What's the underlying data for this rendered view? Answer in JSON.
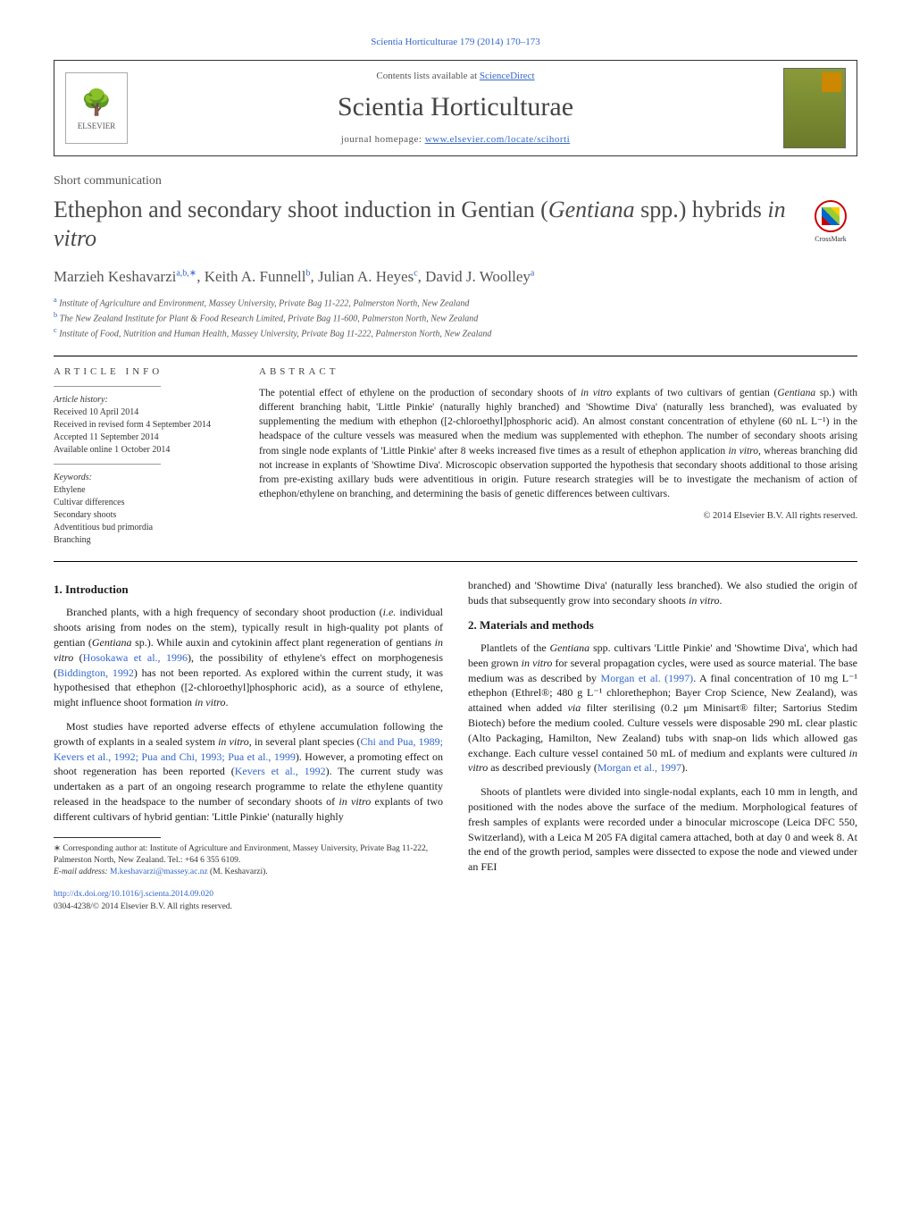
{
  "journal_ref": "Scientia Horticulturae 179 (2014) 170–173",
  "header": {
    "contents_text": "Contents lists available at ",
    "contents_link": "ScienceDirect",
    "journal_title": "Scientia Horticulturae",
    "homepage_label": "journal homepage: ",
    "homepage_url": "www.elsevier.com/locate/scihorti",
    "publisher_logo_text": "ELSEVIER"
  },
  "article_type": "Short communication",
  "title_pre": "Ethephon and secondary shoot induction in Gentian (",
  "title_em1": "Gentiana",
  "title_mid": " spp.) hybrids ",
  "title_em2": "in vitro",
  "crossmark_label": "CrossMark",
  "authors_html": "Marzieh Keshavarzi",
  "author1_sup": "a,b,∗",
  "author2": ", Keith A. Funnell",
  "author2_sup": "b",
  "author3": ", Julian A. Heyes",
  "author3_sup": "c",
  "author4": ", David J. Woolley",
  "author4_sup": "a",
  "affiliations": {
    "a_sup": "a",
    "a": " Institute of Agriculture and Environment, Massey University, Private Bag 11-222, Palmerston North, New Zealand",
    "b_sup": "b",
    "b": " The New Zealand Institute for Plant & Food Research Limited, Private Bag 11-600, Palmerston North, New Zealand",
    "c_sup": "c",
    "c": " Institute of Food, Nutrition and Human Health, Massey University, Private Bag 11-222, Palmerston North, New Zealand"
  },
  "article_info": {
    "heading": "article info",
    "history_label": "Article history:",
    "received": "Received 10 April 2014",
    "revised": "Received in revised form 4 September 2014",
    "accepted": "Accepted 11 September 2014",
    "online": "Available online 1 October 2014",
    "keywords_label": "Keywords:",
    "kw1": "Ethylene",
    "kw2": "Cultivar differences",
    "kw3": "Secondary shoots",
    "kw4": "Adventitious bud primordia",
    "kw5": "Branching"
  },
  "abstract": {
    "heading": "abstract",
    "text_1": "The potential effect of ethylene on the production of secondary shoots of ",
    "em_1": "in vitro",
    "text_2": " explants of two cultivars of gentian (",
    "em_2": "Gentiana",
    "text_3": " sp.) with different branching habit, 'Little Pinkie' (naturally highly branched) and 'Showtime Diva' (naturally less branched), was evaluated by supplementing the medium with ethephon ([2-chloroethyl]phosphoric acid). An almost constant concentration of ethylene (60 nL L⁻¹) in the headspace of the culture vessels was measured when the medium was supplemented with ethephon. The number of secondary shoots arising from single node explants of 'Little Pinkie' after 8 weeks increased five times as a result of ethephon application ",
    "em_3": "in vitro",
    "text_4": ", whereas branching did not increase in explants of 'Showtime Diva'. Microscopic observation supported the hypothesis that secondary shoots additional to those arising from pre-existing axillary buds were adventitious in origin. Future research strategies will be to investigate the mechanism of action of ethephon/ethylene on branching, and determining the basis of genetic differences between cultivars.",
    "copyright": "© 2014 Elsevier B.V. All rights reserved."
  },
  "body": {
    "sec1_heading": "1. Introduction",
    "p1a": "Branched plants, with a high frequency of secondary shoot production (",
    "p1_em1": "i.e.",
    "p1b": " individual shoots arising from nodes on the stem), typically result in high-quality pot plants of gentian (",
    "p1_em2": "Gentiana",
    "p1c": " sp.). While auxin and cytokinin affect plant regeneration of gentians ",
    "p1_em3": "in vitro",
    "p1d": " (",
    "p1_ref1": "Hosokawa et al., 1996",
    "p1e": "), the possibility of ethylene's effect on morphogenesis (",
    "p1_ref2": "Biddington, 1992",
    "p1f": ") has not been reported. As explored within the current study, it was hypothesised that ethephon ([2-chloroethyl]phosphoric acid), as a source of ethylene, might influence shoot formation ",
    "p1_em4": "in vitro",
    "p1g": ".",
    "p2a": "Most studies have reported adverse effects of ethylene accumulation following the growth of explants in a sealed system ",
    "p2_em1": "in vitro",
    "p2b": ", in several plant species (",
    "p2_ref1": "Chi and Pua, 1989; Kevers et al., 1992; Pua and Chi, 1993; Pua et al., 1999",
    "p2c": "). However, a promoting effect on shoot regeneration has been reported (",
    "p2_ref2": "Kevers et al., 1992",
    "p2d": "). The current study was undertaken as a part of an ongoing research programme to relate the ethylene quantity released in the headspace to the number of secondary shoots of ",
    "p2_em2": "in vitro",
    "p2e": " explants of two different cultivars of hybrid gentian: 'Little Pinkie' (naturally highly",
    "p2f_col2": "branched) and 'Showtime Diva' (naturally less branched). We also studied the origin of buds that subsequently grow into secondary shoots ",
    "p2_em3": "in vitro",
    "p2g": ".",
    "sec2_heading": "2. Materials and methods",
    "p3a": "Plantlets of the ",
    "p3_em1": "Gentiana",
    "p3b": " spp. cultivars 'Little Pinkie' and 'Showtime Diva', which had been grown ",
    "p3_em2": "in vitro",
    "p3c": " for several propagation cycles, were used as source material. The base medium was as described by ",
    "p3_ref1": "Morgan et al. (1997)",
    "p3d": ". A final concentration of 10 mg L⁻¹ ethephon (Ethrel®; 480 g L⁻¹ chlorethephon; Bayer Crop Science, New Zealand), was attained when added ",
    "p3_em3": "via",
    "p3e": " filter sterilising (0.2 μm Minisart® filter; Sartorius Stedim Biotech) before the medium cooled. Culture vessels were disposable 290 mL clear plastic (Alto Packaging, Hamilton, New Zealand) tubs with snap-on lids which allowed gas exchange. Each culture vessel contained 50 mL of medium and explants were cultured ",
    "p3_em4": "in vitro",
    "p3f": " as described previously (",
    "p3_ref2": "Morgan et al., 1997",
    "p3g": ").",
    "p4": "Shoots of plantlets were divided into single-nodal explants, each 10 mm in length, and positioned with the nodes above the surface of the medium. Morphological features of fresh samples of explants were recorded under a binocular microscope (Leica DFC 550, Switzerland), with a Leica M 205 FA digital camera attached, both at day 0 and week 8. At the end of the growth period, samples were dissected to expose the node and viewed under an FEI"
  },
  "footnote": {
    "corr_label": "∗ Corresponding author at: Institute of Agriculture and Environment, Massey University, Private Bag 11-222, Palmerston North, New Zealand. Tel.: +64 6 355 6109.",
    "email_label": "E-mail address: ",
    "email": "M.keshavarzi@massey.ac.nz",
    "email_suffix": " (M. Keshavarzi)."
  },
  "doi": "http://dx.doi.org/10.1016/j.scienta.2014.09.020",
  "rights": "0304-4238/© 2014 Elsevier B.V. All rights reserved."
}
